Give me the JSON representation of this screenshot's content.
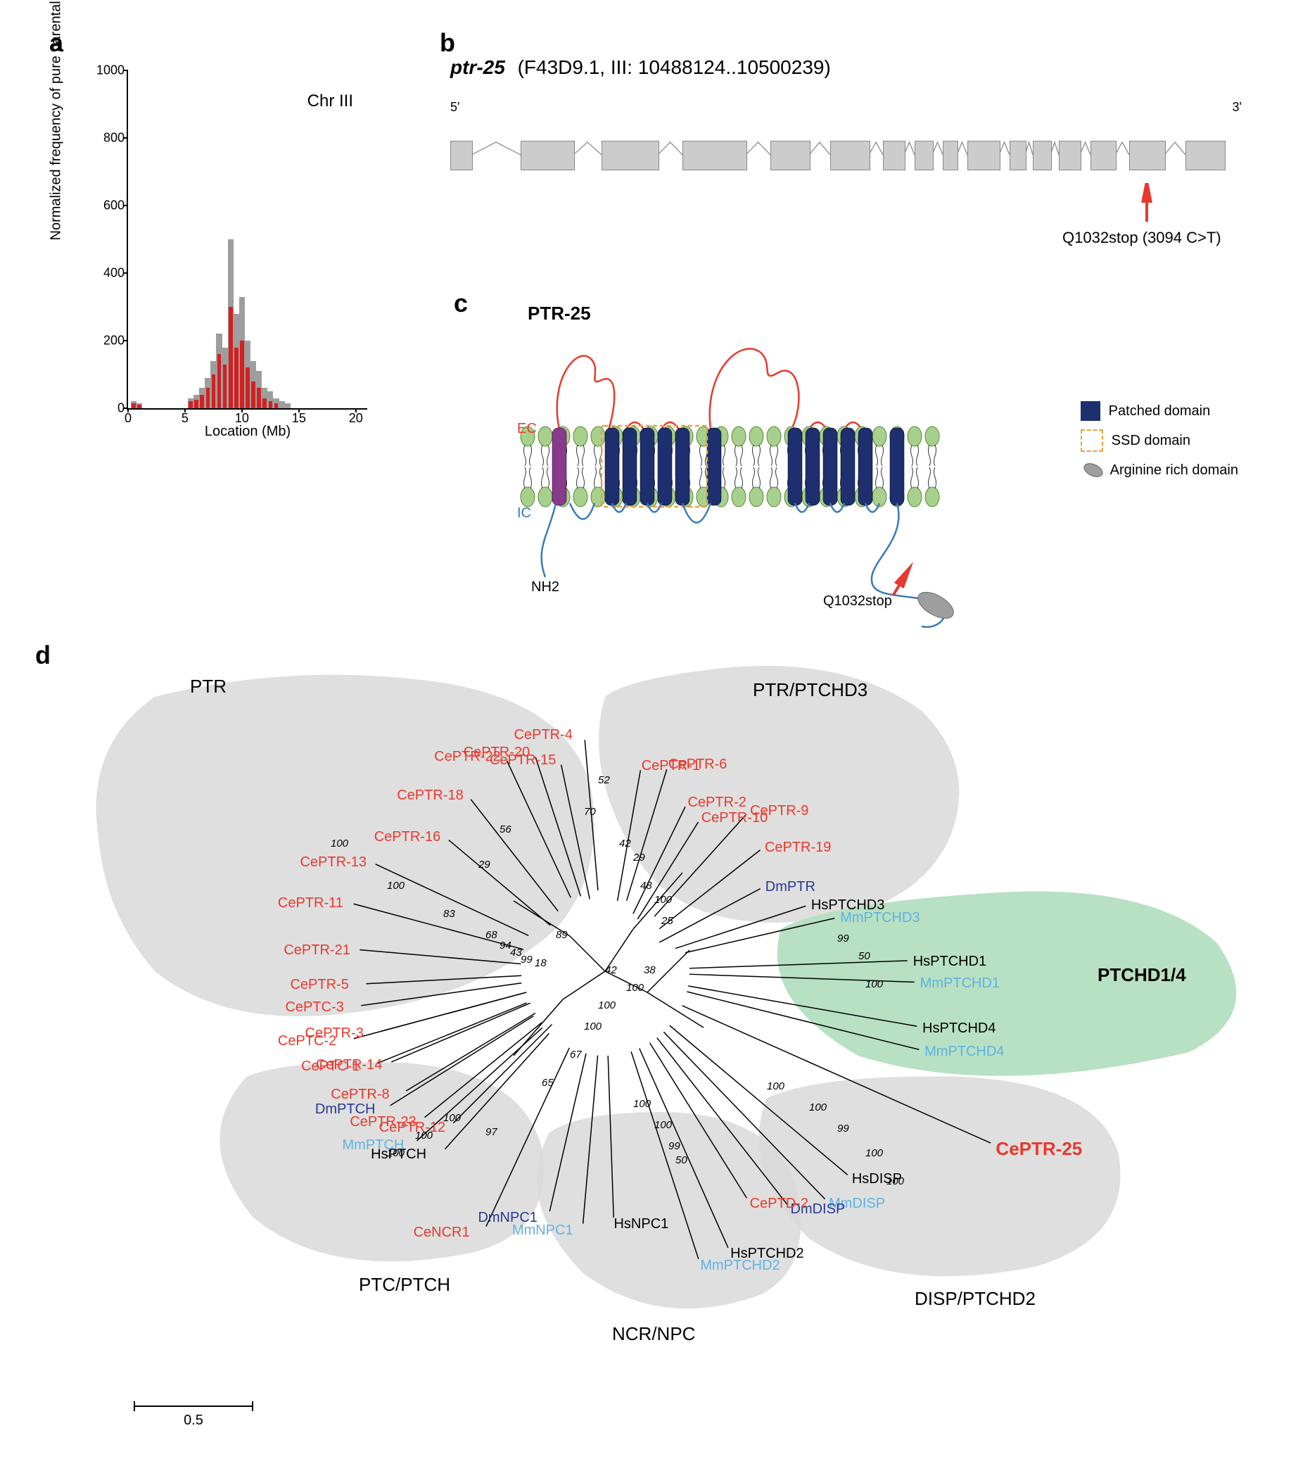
{
  "panel_labels": {
    "a": "a",
    "b": "b",
    "c": "c",
    "d": "d"
  },
  "panel_a": {
    "title": "Chr III",
    "ylabel": "Normalized frequency of pure parental alleles",
    "xlabel": "Location (Mb)",
    "ylim": [
      0,
      1000
    ],
    "yticks": [
      0,
      200,
      400,
      600,
      800,
      1000
    ],
    "xlim": [
      0,
      21
    ],
    "xticks": [
      0,
      5,
      10,
      15,
      20
    ],
    "bar_width": 0.5,
    "grey_color": "#9e9e9e",
    "red_color": "#d32020",
    "grey_bars": [
      {
        "x": 0.5,
        "y": 20
      },
      {
        "x": 1,
        "y": 15
      },
      {
        "x": 5.5,
        "y": 30
      },
      {
        "x": 6,
        "y": 40
      },
      {
        "x": 6.5,
        "y": 60
      },
      {
        "x": 7,
        "y": 90
      },
      {
        "x": 7.5,
        "y": 140
      },
      {
        "x": 8,
        "y": 220
      },
      {
        "x": 8.5,
        "y": 180
      },
      {
        "x": 9,
        "y": 500
      },
      {
        "x": 9.5,
        "y": 280
      },
      {
        "x": 10,
        "y": 330
      },
      {
        "x": 10.5,
        "y": 200
      },
      {
        "x": 11,
        "y": 140
      },
      {
        "x": 11.5,
        "y": 110
      },
      {
        "x": 12,
        "y": 60
      },
      {
        "x": 12.5,
        "y": 50
      },
      {
        "x": 13,
        "y": 30
      },
      {
        "x": 13.5,
        "y": 20
      },
      {
        "x": 14,
        "y": 15
      }
    ],
    "red_bars": [
      {
        "x": 0.5,
        "y": 15
      },
      {
        "x": 1,
        "y": 10
      },
      {
        "x": 5.5,
        "y": 20
      },
      {
        "x": 6,
        "y": 25
      },
      {
        "x": 6.5,
        "y": 40
      },
      {
        "x": 7,
        "y": 60
      },
      {
        "x": 7.5,
        "y": 100
      },
      {
        "x": 8,
        "y": 160
      },
      {
        "x": 8.5,
        "y": 130
      },
      {
        "x": 9,
        "y": 300
      },
      {
        "x": 9.5,
        "y": 180
      },
      {
        "x": 10,
        "y": 200
      },
      {
        "x": 10.5,
        "y": 120
      },
      {
        "x": 11,
        "y": 80
      },
      {
        "x": 11.5,
        "y": 60
      },
      {
        "x": 12,
        "y": 30
      },
      {
        "x": 12.5,
        "y": 20
      },
      {
        "x": 13,
        "y": 15
      }
    ]
  },
  "panel_b": {
    "gene_name": "ptr-25",
    "gene_loc": "(F43D9.1, III: 10488124..10500239)",
    "five_prime": "5'",
    "three_prime": "3'",
    "mutation_label": "Q1032stop (3094 C>T)",
    "exon_color": "#cccccc",
    "arrow_color": "#e8392d",
    "exons": [
      {
        "x": 0,
        "w": 30
      },
      {
        "x": 100,
        "w": 75
      },
      {
        "x": 215,
        "w": 80
      },
      {
        "x": 330,
        "w": 90
      },
      {
        "x": 455,
        "w": 55
      },
      {
        "x": 540,
        "w": 55
      },
      {
        "x": 615,
        "w": 30
      },
      {
        "x": 660,
        "w": 25
      },
      {
        "x": 700,
        "w": 20
      },
      {
        "x": 735,
        "w": 45
      },
      {
        "x": 795,
        "w": 22
      },
      {
        "x": 828,
        "w": 25
      },
      {
        "x": 865,
        "w": 30
      },
      {
        "x": 910,
        "w": 35
      },
      {
        "x": 965,
        "w": 50
      },
      {
        "x": 1045,
        "w": 55
      }
    ]
  },
  "panel_c": {
    "title": "PTR-25",
    "ec_label": "EC",
    "ic_label": "IC",
    "nh2_label": "NH2",
    "mutation_label": "Q1032stop",
    "legend": [
      "Patched domain",
      "SSD domain",
      "Arginine rich domain"
    ],
    "colors": {
      "patched": "#1e2f6f",
      "ssd_border": "#e8a23c",
      "first_tm": "#8a3a8c",
      "lipid": "#a8d08d",
      "ec_line": "#e8392d",
      "ic_line": "#3a7ab8",
      "arg_domain": "#9e9e9e"
    }
  },
  "panel_d": {
    "scale_label": "0.5",
    "groups": {
      "PTR": "PTR",
      "PTR_PTCHD3": "PTR/PTCHD3",
      "PTCHD1_4": "PTCHD1/4",
      "DISP_PTCHD2": "DISP/PTCHD2",
      "NCR_NPC": "NCR/NPC",
      "PTC_PTCH": "PTC/PTCH"
    },
    "highlight_color": "#b8e0c3",
    "blob_color": "#d9d9d9",
    "colors": {
      "ce": "#e8392d",
      "dm": "#2a3890",
      "hs": "#000000",
      "mm": "#5eb3e4"
    },
    "leaves": {
      "CePTR-13": "CePTR-13",
      "CePTR-11": "CePTR-11",
      "CePTR-21": "CePTR-21",
      "CePTR-5": "CePTR-5",
      "CePTR-3": "CePTR-3",
      "CePTR-14": "CePTR-14",
      "CePTR-8": "CePTR-8",
      "CePTR-23": "CePTR-23",
      "CePTR-12": "CePTR-12",
      "CePTR-16": "CePTR-16",
      "CePTR-18": "CePTR-18",
      "CePTR-22": "CePTR-22",
      "CePTR-20": "CePTR-20",
      "CePTR-15": "CePTR-15",
      "CePTR-4": "CePTR-4",
      "CePTR-1": "CePTR-1",
      "CePTR-6": "CePTR-6",
      "CePTR-2": "CePTR-2",
      "CePTR-10": "CePTR-10",
      "CePTR-9": "CePTR-9",
      "CePTR-19": "CePTR-19",
      "DmPTR": "DmPTR",
      "HsPTCHD3": "HsPTCHD3",
      "MmPTCHD3": "MmPTCHD3",
      "HsPTCHD1": "HsPTCHD1",
      "MmPTCHD1": "MmPTCHD1",
      "HsPTCHD4": "HsPTCHD4",
      "MmPTCHD4": "MmPTCHD4",
      "CePTR-25": "CePTR-25",
      "HsDISP": "HsDISP",
      "MmDISP": "MmDISP",
      "DmDISP": "DmDISP",
      "HsPTCHD2": "HsPTCHD2",
      "MmPTCHD2": "MmPTCHD2",
      "CePTD-2": "CePTD-2",
      "HsNPC1": "HsNPC1",
      "MmNPC1": "MmNPC1",
      "DmNPC1": "DmNPC1",
      "CeNCR1": "CeNCR1",
      "CePTC-1": "CePTC-1",
      "CePTC-2": "CePTC-2",
      "CePTC-3": "CePTC-3",
      "HsPTCH": "HsPTCH",
      "MmPTCH": "MmPTCH",
      "DmPTCH": "DmPTCH"
    },
    "bootstraps": [
      "100",
      "100",
      "83",
      "68",
      "94",
      "43",
      "99",
      "18",
      "29",
      "56",
      "89",
      "52",
      "70",
      "42",
      "29",
      "48",
      "100",
      "25",
      "42",
      "100",
      "38",
      "99",
      "50",
      "100",
      "100",
      "100",
      "67",
      "65",
      "100",
      "100",
      "100",
      "97",
      "100",
      "100",
      "99",
      "100",
      "100",
      "99",
      "100",
      "100",
      "50"
    ]
  }
}
